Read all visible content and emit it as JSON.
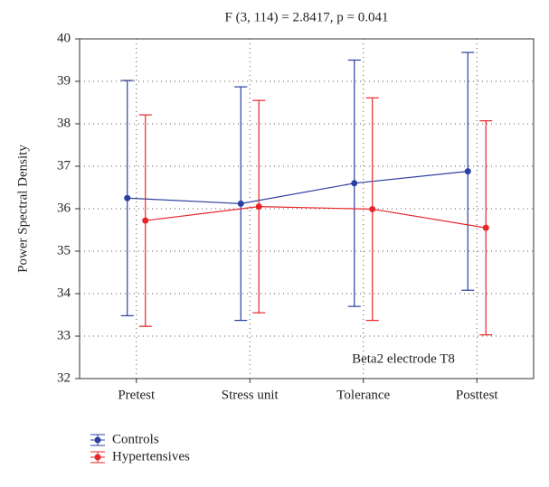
{
  "chart_data": {
    "type": "line",
    "title": "F (3, 114) = 2.8417, p = 0.041",
    "y_label": "Power Spectral Density",
    "annotation": "Beta2 electrode T8",
    "categories": [
      "Pretest",
      "Stress unit",
      "Tolerance",
      "Posttest"
    ],
    "series": [
      {
        "name": "Controls",
        "color": "#2b3fa0",
        "values": [
          36.25,
          36.12,
          36.6,
          36.88
        ],
        "errors": [
          2.77,
          2.75,
          2.9,
          2.8
        ]
      },
      {
        "name": "Hypertensives",
        "color": "#e8262a",
        "values": [
          35.72,
          36.05,
          35.99,
          35.55
        ],
        "errors": [
          2.49,
          2.5,
          2.62,
          2.52
        ]
      }
    ],
    "ylim": [
      32,
      40
    ],
    "yticks": [
      32,
      33,
      34,
      35,
      36,
      37,
      38,
      39,
      40
    ],
    "grid": true
  }
}
